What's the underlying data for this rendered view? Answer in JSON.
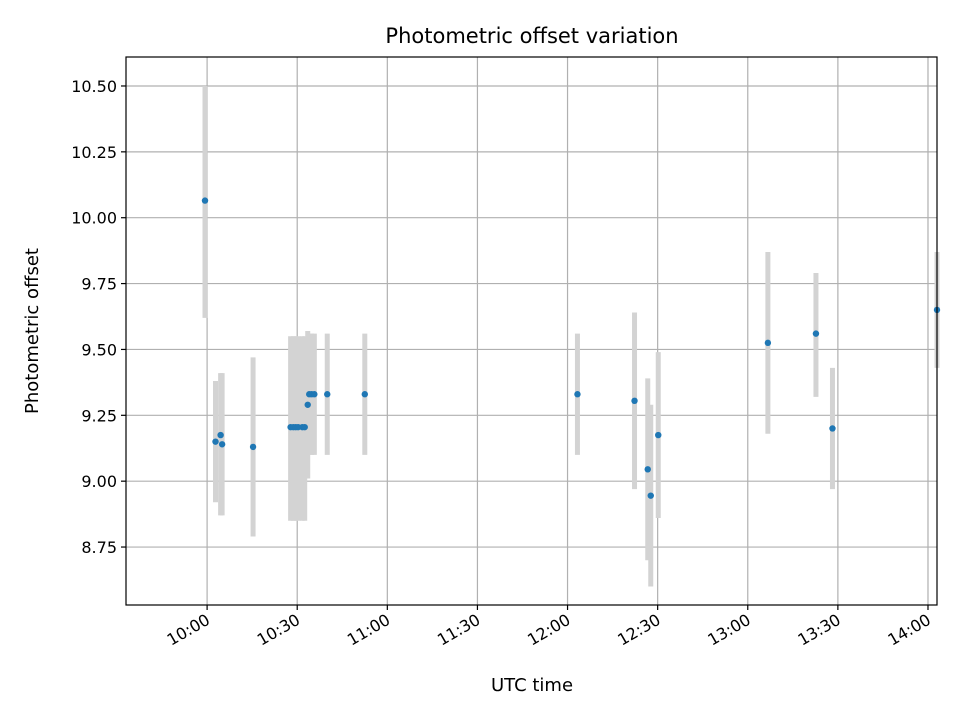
{
  "chart_data": {
    "type": "scatter",
    "title": "Photometric offset variation",
    "xlabel": "UTC time",
    "ylabel": "Photometric offset",
    "grid": true,
    "legend": "none",
    "colors": {
      "point": "#1f77b4",
      "errorbar": "#d3d3d3",
      "grid": "#b0b0b0",
      "axes": "#000000"
    },
    "xlim_minutes": [
      573,
      843
    ],
    "ylim": [
      8.53,
      10.61
    ],
    "x_ticks": [
      {
        "minutes": 600,
        "label": "10:00"
      },
      {
        "minutes": 630,
        "label": "10:30"
      },
      {
        "minutes": 660,
        "label": "11:00"
      },
      {
        "minutes": 690,
        "label": "11:30"
      },
      {
        "minutes": 720,
        "label": "12:00"
      },
      {
        "minutes": 750,
        "label": "12:30"
      },
      {
        "minutes": 780,
        "label": "13:00"
      },
      {
        "minutes": 810,
        "label": "13:30"
      },
      {
        "minutes": 840,
        "label": "14:00"
      }
    ],
    "y_ticks": [
      {
        "value": 8.75,
        "label": "8.75"
      },
      {
        "value": 9.0,
        "label": "9.00"
      },
      {
        "value": 9.25,
        "label": "9.25"
      },
      {
        "value": 9.5,
        "label": "9.50"
      },
      {
        "value": 9.75,
        "label": "9.75"
      },
      {
        "value": 10.0,
        "label": "10.00"
      },
      {
        "value": 10.25,
        "label": "10.25"
      },
      {
        "value": 10.5,
        "label": "10.50"
      }
    ],
    "points": [
      {
        "t": 599.3,
        "y": 10.065,
        "lo": 9.62,
        "hi": 10.5
      },
      {
        "t": 602.8,
        "y": 9.15,
        "lo": 8.92,
        "hi": 9.38
      },
      {
        "t": 604.5,
        "y": 9.175,
        "lo": 8.87,
        "hi": 9.41
      },
      {
        "t": 605.0,
        "y": 9.14,
        "lo": 8.87,
        "hi": 9.41
      },
      {
        "t": 615.3,
        "y": 9.13,
        "lo": 8.79,
        "hi": 9.47
      },
      {
        "t": 627.8,
        "y": 9.205,
        "lo": 8.85,
        "hi": 9.55
      },
      {
        "t": 628.7,
        "y": 9.205,
        "lo": 8.85,
        "hi": 9.55
      },
      {
        "t": 629.5,
        "y": 9.205,
        "lo": 8.85,
        "hi": 9.55
      },
      {
        "t": 630.3,
        "y": 9.205,
        "lo": 8.85,
        "hi": 9.55
      },
      {
        "t": 631.7,
        "y": 9.205,
        "lo": 8.85,
        "hi": 9.55
      },
      {
        "t": 632.5,
        "y": 9.205,
        "lo": 8.85,
        "hi": 9.55
      },
      {
        "t": 633.5,
        "y": 9.29,
        "lo": 9.01,
        "hi": 9.57
      },
      {
        "t": 634.0,
        "y": 9.33,
        "lo": 9.1,
        "hi": 9.56
      },
      {
        "t": 634.8,
        "y": 9.33,
        "lo": 9.1,
        "hi": 9.56
      },
      {
        "t": 635.7,
        "y": 9.33,
        "lo": 9.1,
        "hi": 9.56
      },
      {
        "t": 640.0,
        "y": 9.33,
        "lo": 9.1,
        "hi": 9.56
      },
      {
        "t": 652.5,
        "y": 9.33,
        "lo": 9.1,
        "hi": 9.56
      },
      {
        "t": 723.3,
        "y": 9.33,
        "lo": 9.1,
        "hi": 9.56
      },
      {
        "t": 742.3,
        "y": 9.305,
        "lo": 8.97,
        "hi": 9.64
      },
      {
        "t": 746.7,
        "y": 9.045,
        "lo": 8.7,
        "hi": 9.39
      },
      {
        "t": 747.7,
        "y": 8.945,
        "lo": 8.6,
        "hi": 9.29
      },
      {
        "t": 750.2,
        "y": 9.175,
        "lo": 8.86,
        "hi": 9.49
      },
      {
        "t": 786.7,
        "y": 9.525,
        "lo": 9.18,
        "hi": 9.87
      },
      {
        "t": 802.7,
        "y": 9.56,
        "lo": 9.32,
        "hi": 9.79
      },
      {
        "t": 808.2,
        "y": 9.2,
        "lo": 8.97,
        "hi": 9.43
      },
      {
        "t": 843.0,
        "y": 9.65,
        "lo": 9.43,
        "hi": 9.87
      }
    ]
  }
}
